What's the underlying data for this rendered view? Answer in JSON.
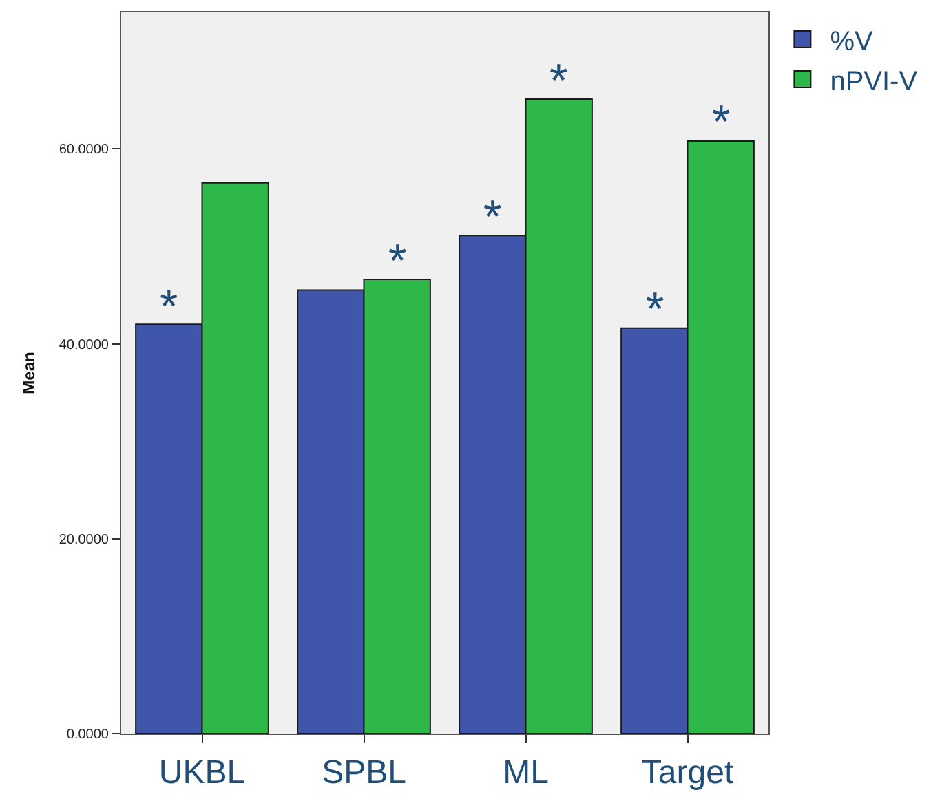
{
  "chart_data": {
    "type": "bar",
    "ylabel": "Mean",
    "categories": [
      "UKBL",
      "SPBL",
      "ML",
      "Target"
    ],
    "series": [
      {
        "name": "%V",
        "color": "#3f56ab",
        "values": [
          42.0,
          45.5,
          51.1,
          41.6
        ]
      },
      {
        "name": "nPVI-V",
        "color": "#2fb84a",
        "values": [
          56.5,
          46.6,
          65.1,
          60.8
        ]
      }
    ],
    "ylim": [
      0,
      74
    ],
    "yticks": [
      {
        "value": 0,
        "label": "0.0000"
      },
      {
        "value": 20,
        "label": "20.0000"
      },
      {
        "value": 40,
        "label": "40.0000"
      },
      {
        "value": 60,
        "label": "60.0000"
      }
    ],
    "grid": false,
    "legend": "top right",
    "annotations": [
      {
        "text": "*",
        "x": "UKBL",
        "y": 42.0
      },
      {
        "text": "*",
        "x": "SPBL",
        "y": 46.6
      },
      {
        "text": "*",
        "x": "ML",
        "y": 51.1
      },
      {
        "text": "*",
        "x": "ML",
        "y": 65.1
      },
      {
        "text": "*",
        "x": "Target",
        "y": 41.6
      },
      {
        "text": "*",
        "x": "Target",
        "y": 60.8
      }
    ]
  }
}
